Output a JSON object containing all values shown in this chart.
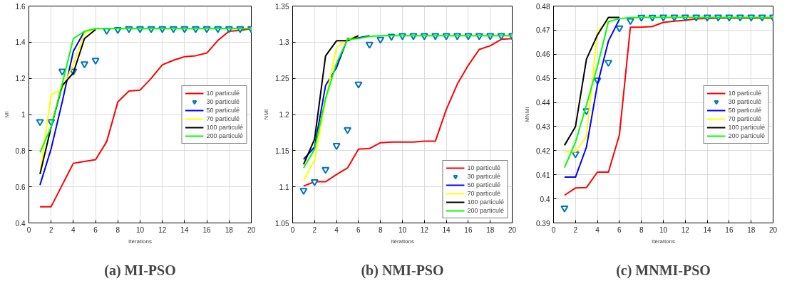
{
  "chart_data": [
    {
      "type": "line",
      "title": "(a) MI-PSO",
      "xlabel": "Itérations",
      "ylabel": "MI",
      "x": [
        1,
        2,
        3,
        4,
        5,
        6,
        7,
        8,
        9,
        10,
        11,
        12,
        13,
        14,
        15,
        16,
        17,
        18,
        19,
        20
      ],
      "xlim": [
        0,
        20
      ],
      "xticks": [
        0,
        2,
        4,
        6,
        8,
        10,
        12,
        14,
        16,
        18,
        20
      ],
      "ylim": [
        0.4,
        1.6
      ],
      "yticks": [
        0.4,
        0.6,
        0.8,
        1,
        1.2,
        1.4,
        1.6
      ],
      "grid": true,
      "legend": "right",
      "series": [
        {
          "name": "10 particulé",
          "color": "#ff0000",
          "values": [
            0.49,
            0.49,
            0.61,
            0.73,
            0.74,
            0.75,
            0.85,
            1.07,
            1.13,
            1.135,
            1.2,
            1.275,
            1.3,
            1.32,
            1.325,
            1.34,
            1.41,
            1.46,
            1.465,
            1.475
          ]
        },
        {
          "name": "30 particulé",
          "type": "scatter",
          "marker": "triangle",
          "color": "#0072bd",
          "values": [
            0.96,
            0.96,
            1.24,
            1.24,
            1.28,
            1.3,
            1.465,
            1.47,
            1.475,
            1.475,
            1.475,
            1.475,
            1.475,
            1.475,
            1.475,
            1.475,
            1.475,
            1.475,
            1.475,
            1.475
          ]
        },
        {
          "name": "50 particulé",
          "color": "#0000ff",
          "values": [
            0.61,
            0.81,
            1.07,
            1.35,
            1.46,
            null,
            null,
            null,
            null,
            null,
            null,
            null,
            null,
            null,
            null,
            null,
            null,
            null,
            null,
            null
          ]
        },
        {
          "name": "70 particulé",
          "color": "#ffff00",
          "values": [
            0.67,
            1.11,
            1.14,
            1.28,
            1.45,
            1.475,
            null,
            null,
            null,
            null,
            null,
            null,
            null,
            null,
            null,
            null,
            null,
            null,
            null,
            null
          ]
        },
        {
          "name": "100 particulé",
          "color": "#000000",
          "values": [
            0.67,
            0.93,
            1.16,
            1.23,
            1.42,
            1.47,
            null,
            null,
            null,
            null,
            null,
            null,
            null,
            null,
            null,
            null,
            null,
            null,
            null,
            null
          ]
        },
        {
          "name": "200 particulé",
          "color": "#00ff00",
          "values": [
            0.79,
            0.93,
            1.17,
            1.42,
            1.46,
            1.475,
            1.475,
            1.475,
            1.475,
            1.475,
            1.475,
            1.475,
            1.475,
            1.475,
            1.475,
            1.475,
            1.475,
            1.475,
            1.475,
            1.475
          ]
        }
      ]
    },
    {
      "type": "line",
      "title": "(b) NMI-PSO",
      "xlabel": "Itérations",
      "ylabel": "NMI",
      "x": [
        1,
        2,
        3,
        4,
        5,
        6,
        7,
        8,
        9,
        10,
        11,
        12,
        13,
        14,
        15,
        16,
        17,
        18,
        19,
        20
      ],
      "xlim": [
        0,
        20
      ],
      "xticks": [
        0,
        2,
        4,
        6,
        8,
        10,
        12,
        14,
        16,
        18,
        20
      ],
      "ylim": [
        1.05,
        1.35
      ],
      "yticks": [
        1.05,
        1.1,
        1.15,
        1.2,
        1.25,
        1.3,
        1.35
      ],
      "grid": true,
      "legend": "bottom right",
      "series": [
        {
          "name": "10 particulé",
          "color": "#ff0000",
          "values": [
            1.101,
            1.107,
            1.107,
            1.117,
            1.126,
            1.152,
            1.153,
            1.161,
            1.162,
            1.162,
            1.162,
            1.163,
            1.163,
            1.207,
            1.242,
            1.268,
            1.29,
            1.295,
            1.304,
            1.305
          ]
        },
        {
          "name": "30 particulé",
          "type": "scatter",
          "marker": "triangle",
          "color": "#0072bd",
          "values": [
            1.095,
            1.107,
            1.124,
            1.157,
            1.179,
            1.242,
            1.297,
            1.304,
            1.308,
            1.309,
            1.309,
            1.309,
            1.309,
            1.309,
            1.309,
            1.309,
            1.309,
            1.309,
            1.309,
            1.309
          ]
        },
        {
          "name": "50 particulé",
          "color": "#0000ff",
          "values": [
            1.138,
            1.155,
            1.24,
            1.265,
            1.305,
            1.306,
            1.309,
            null,
            null,
            null,
            null,
            null,
            null,
            null,
            null,
            null,
            null,
            null,
            null,
            null
          ]
        },
        {
          "name": "70 particulé",
          "color": "#ffff00",
          "values": [
            1.109,
            1.137,
            1.22,
            1.293,
            1.304,
            1.309,
            null,
            null,
            null,
            null,
            null,
            null,
            null,
            null,
            null,
            null,
            null,
            null,
            null,
            null
          ]
        },
        {
          "name": "100 particulé",
          "color": "#000000",
          "values": [
            1.131,
            1.166,
            1.281,
            1.302,
            1.302,
            1.309,
            null,
            null,
            null,
            null,
            null,
            null,
            null,
            null,
            null,
            null,
            null,
            null,
            null,
            null
          ]
        },
        {
          "name": "200 particulé",
          "color": "#00ff00",
          "values": [
            1.126,
            1.152,
            1.222,
            1.271,
            1.304,
            1.305,
            1.308,
            1.309,
            1.309,
            1.309,
            1.309,
            1.309,
            1.309,
            1.309,
            1.309,
            1.309,
            1.309,
            1.309,
            1.309,
            1.309
          ]
        }
      ]
    },
    {
      "type": "line",
      "title": "(c) MNMI-PSO",
      "xlabel": "Itérations",
      "ylabel": "MNMI",
      "x": [
        1,
        2,
        3,
        4,
        5,
        6,
        7,
        8,
        9,
        10,
        11,
        12,
        13,
        14,
        15,
        16,
        17,
        18,
        19,
        20
      ],
      "xlim": [
        0,
        20
      ],
      "xticks": [
        0,
        2,
        4,
        6,
        8,
        10,
        12,
        14,
        16,
        18,
        20
      ],
      "ylim": [
        0.39,
        0.48
      ],
      "yticks": [
        0.39,
        0.4,
        0.41,
        0.42,
        0.43,
        0.44,
        0.45,
        0.46,
        0.47,
        0.48
      ],
      "grid": true,
      "legend": "right",
      "series": [
        {
          "name": "10 particulé",
          "color": "#ff0000",
          "values": [
            0.4015,
            0.4045,
            0.4047,
            0.4111,
            0.4111,
            0.4265,
            0.4712,
            0.4712,
            0.4715,
            0.4732,
            0.4737,
            0.4741,
            0.4747,
            0.4748,
            0.475,
            0.475,
            0.475,
            0.475,
            0.475,
            0.475
          ]
        },
        {
          "name": "30 particulé",
          "type": "scatter",
          "marker": "triangle",
          "color": "#0072bd",
          "values": [
            0.3962,
            0.4187,
            0.4365,
            0.4493,
            0.4566,
            0.4709,
            0.4739,
            0.4753,
            0.4753,
            0.4754,
            0.4754,
            0.4754,
            0.4754,
            0.4754,
            0.4754,
            0.4754,
            0.4754,
            0.4754,
            0.4754,
            0.4754
          ]
        },
        {
          "name": "50 particulé",
          "color": "#0000ff",
          "values": [
            0.409,
            0.409,
            0.4215,
            0.4475,
            0.4655,
            0.4745,
            null,
            null,
            null,
            null,
            null,
            null,
            null,
            null,
            null,
            null,
            null,
            null,
            null,
            null
          ]
        },
        {
          "name": "70 particulé",
          "color": "#ffff00",
          "values": [
            0.4195,
            0.4195,
            0.426,
            0.4695,
            0.474,
            null,
            null,
            null,
            null,
            null,
            null,
            null,
            null,
            null,
            null,
            null,
            null,
            null,
            null,
            null
          ]
        },
        {
          "name": "100 particulé",
          "color": "#000000",
          "values": [
            0.4222,
            0.43,
            0.458,
            0.468,
            0.4753,
            0.4753,
            null,
            null,
            null,
            null,
            null,
            null,
            null,
            null,
            null,
            null,
            null,
            null,
            null,
            null
          ]
        },
        {
          "name": "200 particulé",
          "color": "#00ff00",
          "values": [
            0.413,
            0.4235,
            0.439,
            0.455,
            0.4735,
            0.4748,
            0.4752,
            0.4753,
            0.4753,
            0.4753,
            0.4753,
            0.4753,
            0.4753,
            0.4753,
            0.4753,
            0.4753,
            0.4753,
            0.4753,
            0.4753,
            0.4753
          ]
        }
      ]
    }
  ]
}
